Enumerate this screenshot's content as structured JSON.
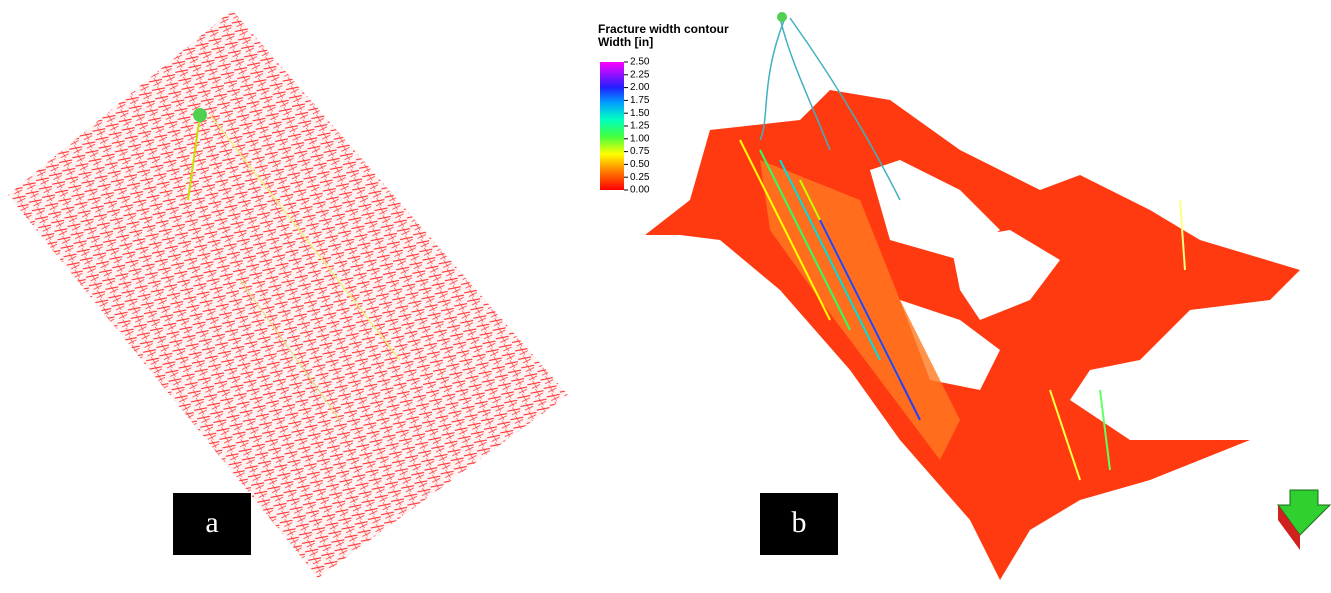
{
  "legend": {
    "title": "Fracture width contour",
    "subtitle": "Width [in]",
    "ticks": [
      "2.50",
      "2.25",
      "2.00",
      "1.75",
      "1.50",
      "1.25",
      "1.00",
      "0.75",
      "0.50",
      "0.25",
      "0.00"
    ]
  },
  "panels": [
    {
      "label": "a"
    },
    {
      "label": "b"
    }
  ]
}
